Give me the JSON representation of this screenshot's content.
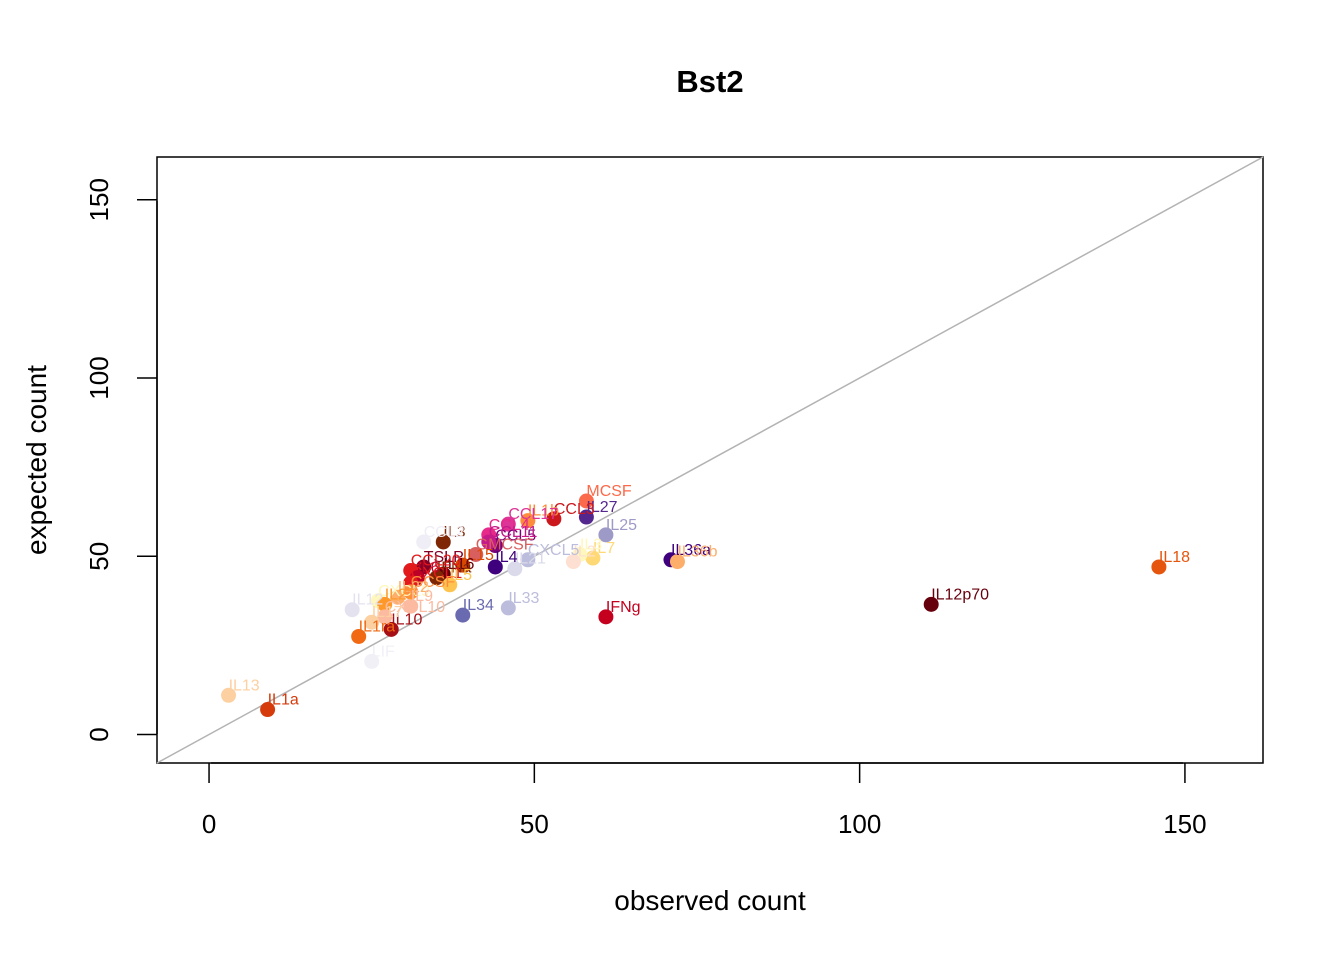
{
  "chart_data": {
    "type": "scatter",
    "title": "Bst2",
    "xlabel": "observed count",
    "ylabel": "expected count",
    "xlim": [
      -8,
      162
    ],
    "ylim": [
      -8,
      162
    ],
    "x_ticks": [
      "0",
      "50",
      "100",
      "150"
    ],
    "y_ticks": [
      "0",
      "50",
      "100",
      "150"
    ],
    "reference_line": "y = x",
    "reference_line_color": "#b3b3b3",
    "grid": false,
    "points": [
      {
        "label": "IL18",
        "x": 146,
        "y": 47,
        "color": "#e6550d"
      },
      {
        "label": "IL12p70",
        "x": 111,
        "y": 36.5,
        "color": "#67000d"
      },
      {
        "label": "IL36a",
        "x": 71,
        "y": 49,
        "color": "#3f007d"
      },
      {
        "label": "IL36b",
        "x": 72,
        "y": 48.5,
        "color": "#fdae6b"
      },
      {
        "label": "IFNg",
        "x": 61,
        "y": 33,
        "color": "#c4001e"
      },
      {
        "label": "MCSF",
        "x": 58,
        "y": 65.5,
        "color": "#fb6a4a"
      },
      {
        "label": "IL27",
        "x": 58,
        "y": 61,
        "color": "#54278f"
      },
      {
        "label": "IL25",
        "x": 61,
        "y": 56,
        "color": "#9e9ac8"
      },
      {
        "label": "IL7",
        "x": 59,
        "y": 49.5,
        "color": "#fed976"
      },
      {
        "label": "IL3",
        "x": 57,
        "y": 50.5,
        "color": "#fff7bc"
      },
      {
        "label": "IL2",
        "x": 56,
        "y": 48.5,
        "color": "#fee0d2"
      },
      {
        "label": "CCL3",
        "x": 53,
        "y": 60.5,
        "color": "#cb181d"
      },
      {
        "label": "IL1b",
        "x": 49,
        "y": 60,
        "color": "#fd8d3c"
      },
      {
        "label": "CXCL5",
        "x": 49,
        "y": 49,
        "color": "#bcbddc"
      },
      {
        "label": "IL21",
        "x": 47,
        "y": 46.5,
        "color": "#dadaeb"
      },
      {
        "label": "IL33",
        "x": 46,
        "y": 35.5,
        "color": "#bcbddc"
      },
      {
        "label": "CCL17",
        "x": 46,
        "y": 59,
        "color": "#dd3497"
      },
      {
        "label": "IL4",
        "x": 44,
        "y": 47,
        "color": "#3f007d"
      },
      {
        "label": "CCL5",
        "x": 44,
        "y": 53,
        "color": "#7a0177"
      },
      {
        "label": "CCL4",
        "x": 43,
        "y": 56,
        "color": "#e7298a"
      },
      {
        "label": "CCL11",
        "x": 43,
        "y": 54,
        "color": "#c51b8a"
      },
      {
        "label": "GMCSF",
        "x": 41,
        "y": 50.5,
        "color": "#d95f5f"
      },
      {
        "label": "IL34",
        "x": 39,
        "y": 33.5,
        "color": "#6a6ab0"
      },
      {
        "label": "IL15",
        "x": 39,
        "y": 47.5,
        "color": "#d94801"
      },
      {
        "label": "IL3",
        "x": 36,
        "y": 54,
        "color": "#7f2704"
      },
      {
        "label": "CCL2",
        "x": 33,
        "y": 54,
        "color": "#efedf5"
      },
      {
        "label": "IL10",
        "x": 28,
        "y": 29.5,
        "color": "#a50f15"
      },
      {
        "label": "TSLP",
        "x": 33,
        "y": 47,
        "color": "#800026"
      },
      {
        "label": "IL16",
        "x": 36,
        "y": 45,
        "color": "#67000d"
      },
      {
        "label": "IFNa",
        "x": 35,
        "y": 44,
        "color": "#7f2704"
      },
      {
        "label": "CCL20",
        "x": 31,
        "y": 46,
        "color": "#e31a1c"
      },
      {
        "label": "IL6",
        "x": 32,
        "y": 44,
        "color": "#bd0026"
      },
      {
        "label": "CXCL1",
        "x": 31,
        "y": 42.5,
        "color": "#e31a1c"
      },
      {
        "label": "IL5",
        "x": 37,
        "y": 42,
        "color": "#fec44f"
      },
      {
        "label": "GCSF",
        "x": 31,
        "y": 40,
        "color": "#fd8d3c"
      },
      {
        "label": "CXCL9",
        "x": 26,
        "y": 37.5,
        "color": "#fff7bc"
      },
      {
        "label": "IL22",
        "x": 29,
        "y": 38.5,
        "color": "#fdae6b"
      },
      {
        "label": "IL23",
        "x": 27,
        "y": 36.5,
        "color": "#fe9929"
      },
      {
        "label": "IL9",
        "x": 31,
        "y": 36,
        "color": "#fcbba1"
      },
      {
        "label": "IL12",
        "x": 22,
        "y": 35,
        "color": "#e5e2f0"
      },
      {
        "label": "CXCL10",
        "x": 27,
        "y": 33,
        "color": "#fcbba1"
      },
      {
        "label": "IL17",
        "x": 25,
        "y": 31.5,
        "color": "#fdd0a2"
      },
      {
        "label": "IL1ra",
        "x": 23,
        "y": 27.5,
        "color": "#f16913"
      },
      {
        "label": "LIF",
        "x": 25,
        "y": 20.5,
        "color": "#f2f0f7"
      },
      {
        "label": "IL13",
        "x": 3,
        "y": 11,
        "color": "#fdd0a2"
      },
      {
        "label": "IL1a",
        "x": 9,
        "y": 7,
        "color": "#d63b0c"
      }
    ]
  }
}
